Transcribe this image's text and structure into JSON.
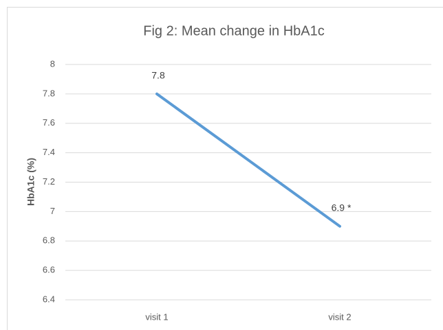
{
  "chart_data": {
    "type": "line",
    "title": "Fig 2: Mean change in HbA1c",
    "y_label": "HbA1c (%)",
    "categories": [
      "visit 1",
      "visit 2"
    ],
    "series": [
      {
        "name": "HbA1c",
        "color": "#5b9bd5",
        "values": [
          7.8,
          6.9
        ],
        "value_labels": [
          "7.8",
          "6.9 *"
        ]
      }
    ],
    "ylim": [
      6.4,
      8
    ],
    "yticks": [
      6.4,
      6.6,
      6.8,
      7,
      7.2,
      7.4,
      7.6,
      7.8,
      8
    ],
    "grid": true
  }
}
